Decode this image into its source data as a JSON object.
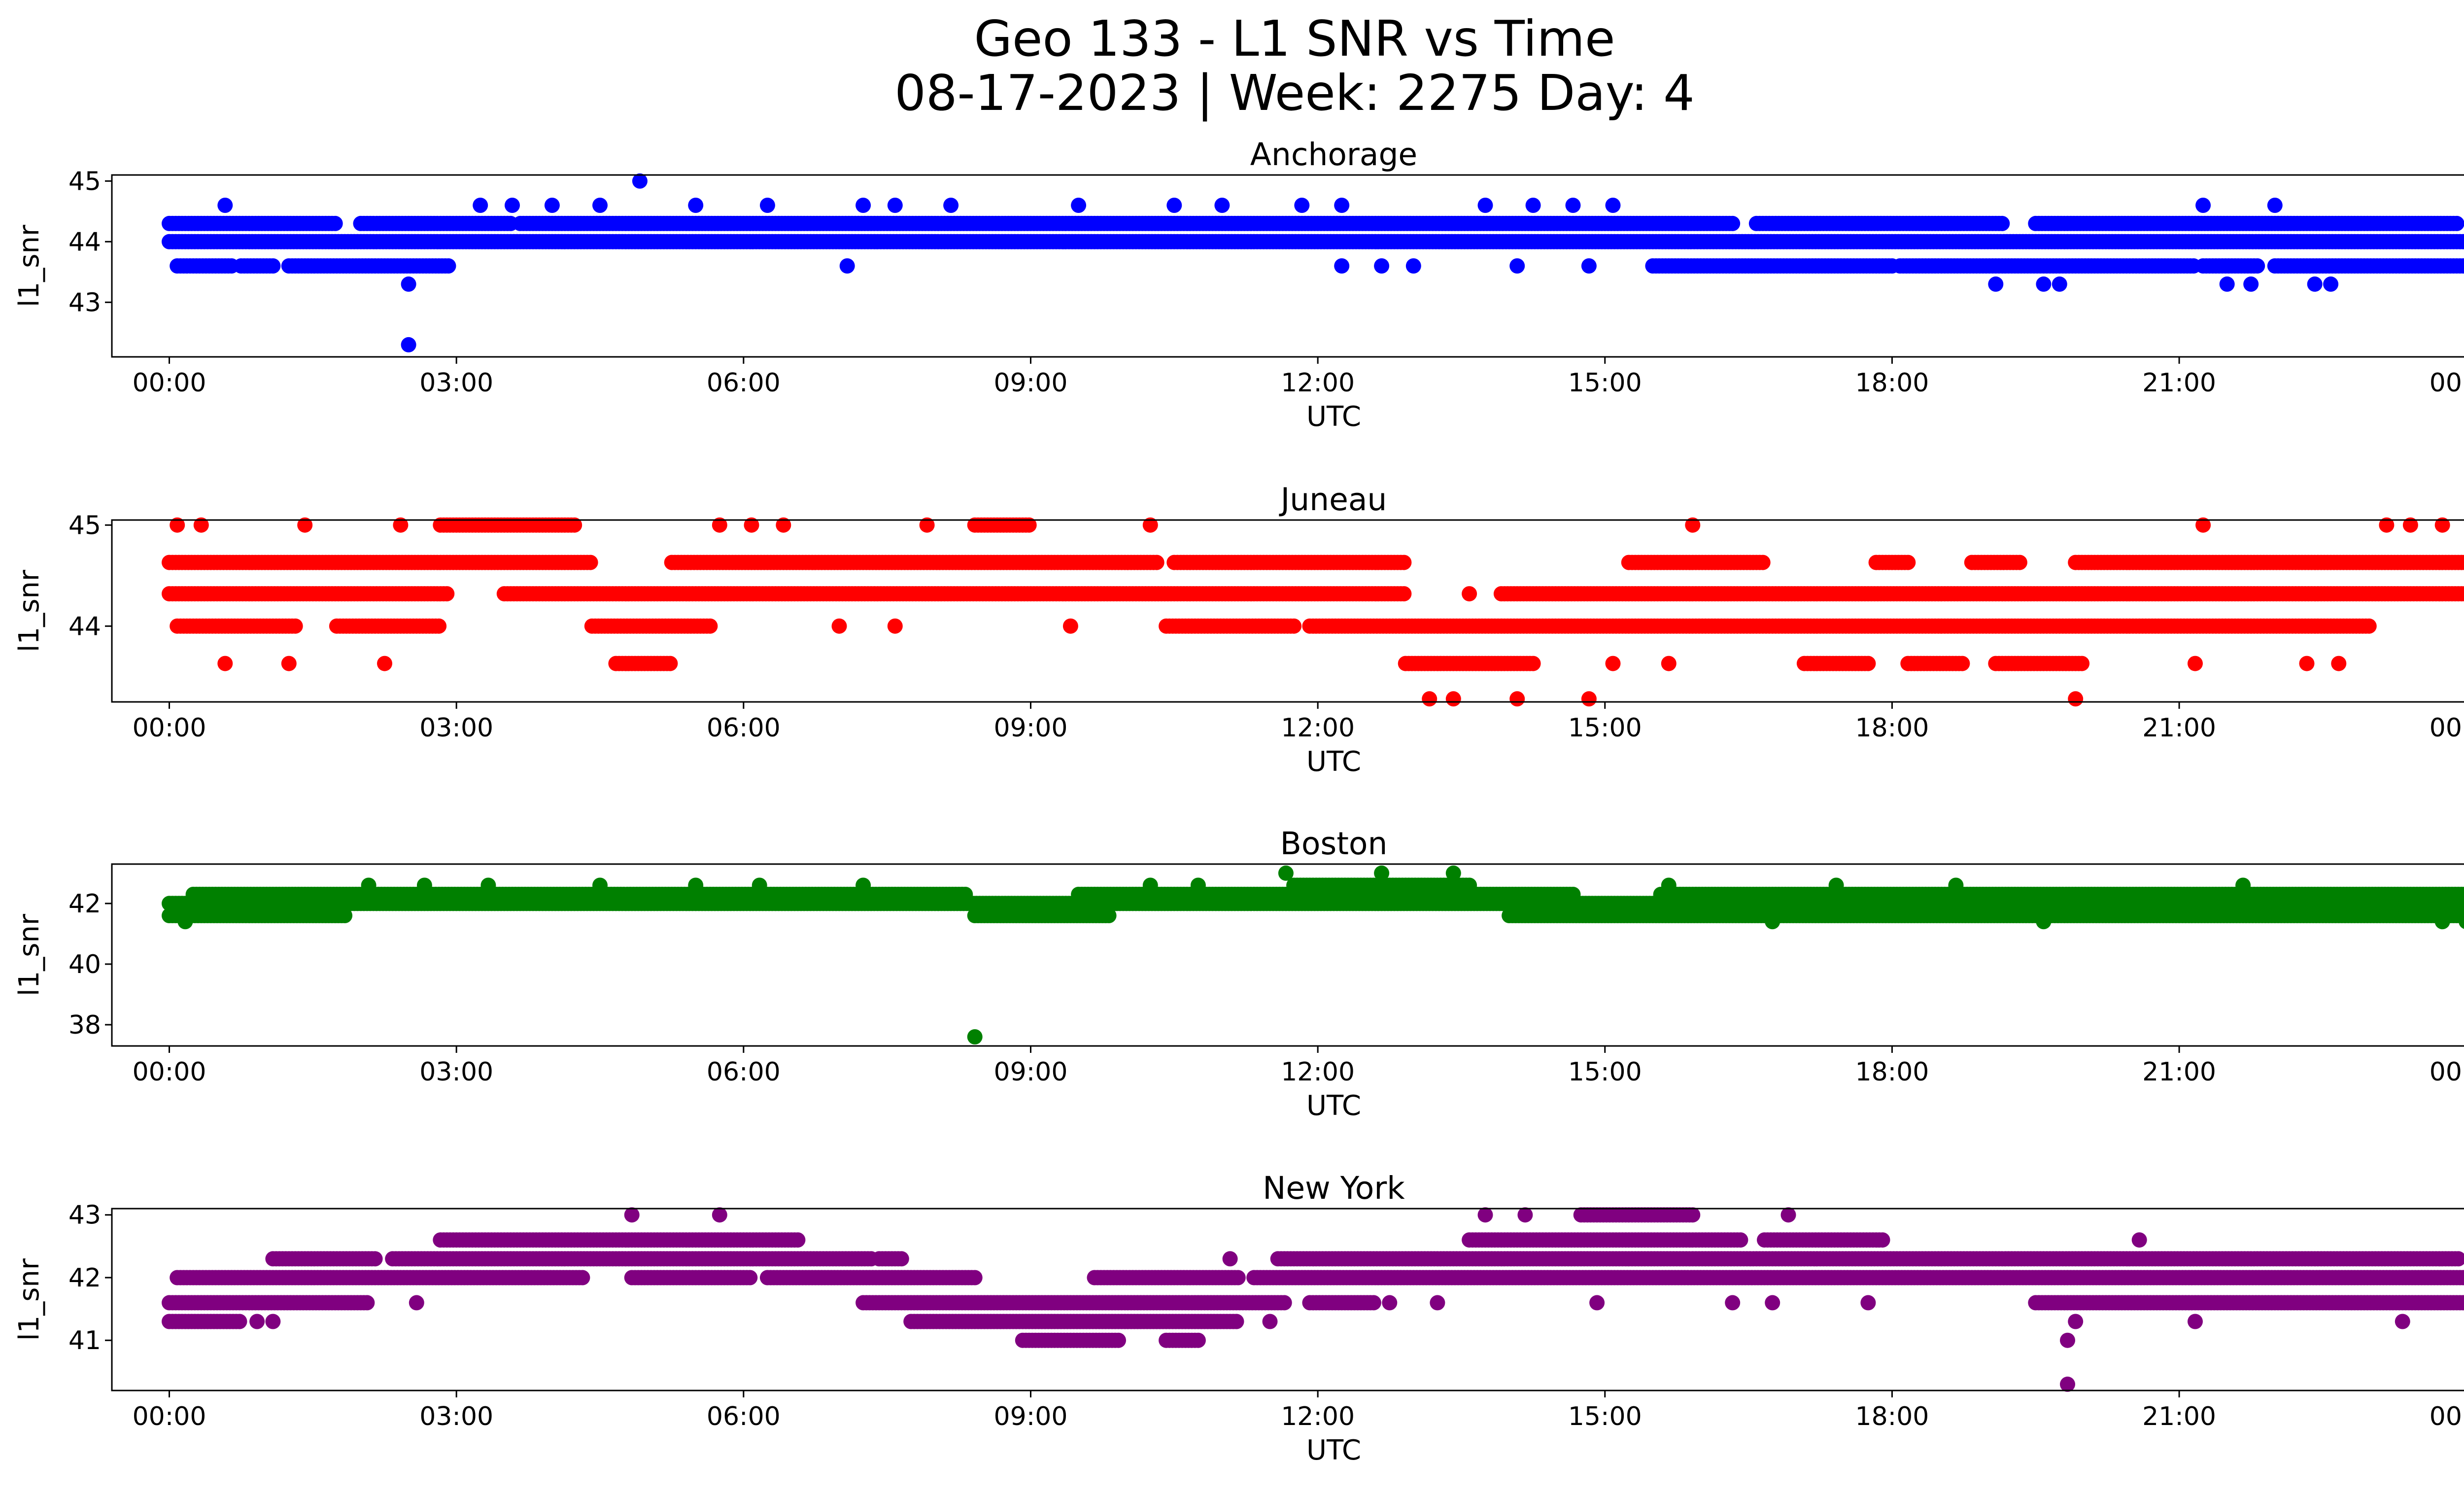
{
  "title_line1": "Geo 133 - L1 SNR vs Time",
  "title_line2": "08-17-2023 | Week: 2275 Day: 4",
  "chart_data": [
    {
      "type": "scatter",
      "title": "Anchorage",
      "xlabel": "UTC",
      "ylabel": "l1_snr",
      "color": "#0000ff",
      "xlim": [
        "23:24",
        "00:56"
      ],
      "x_ticks": [
        "00:00",
        "03:00",
        "06:00",
        "09:00",
        "12:00",
        "15:00",
        "18:00",
        "21:00",
        "00:00"
      ],
      "ylim": [
        42.1,
        45.1
      ],
      "y_ticks": [
        43,
        44,
        45
      ],
      "bands": [
        {
          "y": 44.3,
          "segments": [
            [
              "00:00",
              "01:45"
            ],
            [
              "02:00",
              "03:35"
            ],
            [
              "03:40",
              "16:20"
            ],
            [
              "16:35",
              "19:10"
            ],
            [
              "19:30",
              "23:55"
            ]
          ]
        },
        {
          "y": 44.0,
          "segments": [
            [
              "00:00",
              "24:00"
            ]
          ]
        },
        {
          "y": 43.6,
          "segments": [
            [
              "00:05",
              "00:40"
            ],
            [
              "00:45",
              "01:05"
            ],
            [
              "01:15",
              "02:55"
            ],
            [
              "15:30",
              "18:00"
            ],
            [
              "18:05",
              "21:10"
            ],
            [
              "21:15",
              "21:50"
            ],
            [
              "22:00",
              "24:00"
            ]
          ]
        }
      ],
      "points": [
        {
          "x": "00:35",
          "y": 44.6
        },
        {
          "x": "02:30",
          "y": 43.3
        },
        {
          "x": "02:30",
          "y": 42.3
        },
        {
          "x": "03:15",
          "y": 44.6
        },
        {
          "x": "03:35",
          "y": 44.6
        },
        {
          "x": "04:00",
          "y": 44.6
        },
        {
          "x": "04:30",
          "y": 44.6
        },
        {
          "x": "04:55",
          "y": 45.0
        },
        {
          "x": "05:30",
          "y": 44.6
        },
        {
          "x": "06:15",
          "y": 44.6
        },
        {
          "x": "07:05",
          "y": 43.6
        },
        {
          "x": "07:15",
          "y": 44.6
        },
        {
          "x": "07:35",
          "y": 44.6
        },
        {
          "x": "08:10",
          "y": 44.6
        },
        {
          "x": "09:30",
          "y": 44.6
        },
        {
          "x": "10:30",
          "y": 44.6
        },
        {
          "x": "11:00",
          "y": 44.6
        },
        {
          "x": "11:50",
          "y": 44.6
        },
        {
          "x": "12:15",
          "y": 44.6
        },
        {
          "x": "12:15",
          "y": 43.6
        },
        {
          "x": "12:40",
          "y": 43.6
        },
        {
          "x": "13:00",
          "y": 43.6
        },
        {
          "x": "13:45",
          "y": 44.6
        },
        {
          "x": "14:05",
          "y": 43.6
        },
        {
          "x": "14:15",
          "y": 44.6
        },
        {
          "x": "14:40",
          "y": 44.6
        },
        {
          "x": "14:50",
          "y": 43.6
        },
        {
          "x": "15:05",
          "y": 44.6
        },
        {
          "x": "19:05",
          "y": 43.3
        },
        {
          "x": "19:35",
          "y": 43.3
        },
        {
          "x": "19:45",
          "y": 43.3
        },
        {
          "x": "21:15",
          "y": 44.6
        },
        {
          "x": "21:30",
          "y": 43.3
        },
        {
          "x": "21:45",
          "y": 43.3
        },
        {
          "x": "22:00",
          "y": 44.6
        },
        {
          "x": "22:25",
          "y": 43.3
        },
        {
          "x": "22:35",
          "y": 43.3
        }
      ]
    },
    {
      "type": "scatter",
      "title": "Juneau",
      "xlabel": "UTC",
      "ylabel": "l1_snr",
      "color": "#ff0000",
      "xlim": [
        "23:24",
        "00:56"
      ],
      "x_ticks": [
        "00:00",
        "03:00",
        "06:00",
        "09:00",
        "12:00",
        "15:00",
        "18:00",
        "21:00",
        "00:00"
      ],
      "ylim": [
        43.25,
        45.05
      ],
      "y_ticks": [
        44,
        45
      ],
      "bands": [
        {
          "y": 44.63,
          "segments": [
            [
              "00:00",
              "04:25"
            ],
            [
              "05:15",
              "10:20"
            ],
            [
              "10:30",
              "12:55"
            ],
            [
              "15:15",
              "16:40"
            ],
            [
              "17:50",
              "18:10"
            ],
            [
              "18:50",
              "19:20"
            ],
            [
              "19:55",
              "24:00"
            ]
          ]
        },
        {
          "y": 44.32,
          "segments": [
            [
              "00:00",
              "02:55"
            ],
            [
              "03:30",
              "12:55"
            ],
            [
              "13:55",
              "24:00"
            ]
          ]
        },
        {
          "y": 44.0,
          "segments": [
            [
              "00:05",
              "01:20"
            ],
            [
              "01:45",
              "02:50"
            ],
            [
              "04:25",
              "05:40"
            ],
            [
              "10:25",
              "11:45"
            ],
            [
              "11:55",
              "23:00"
            ]
          ]
        },
        {
          "y": 43.63,
          "segments": [
            [
              "04:40",
              "05:15"
            ],
            [
              "12:55",
              "14:15"
            ],
            [
              "17:05",
              "17:45"
            ],
            [
              "18:10",
              "18:45"
            ],
            [
              "19:05",
              "20:00"
            ]
          ]
        },
        {
          "y": 45.0,
          "segments": [
            [
              "02:50",
              "04:15"
            ],
            [
              "08:25",
              "09:00"
            ]
          ]
        }
      ],
      "points": [
        {
          "x": "00:05",
          "y": 45.0
        },
        {
          "x": "00:20",
          "y": 45.0
        },
        {
          "x": "00:35",
          "y": 43.63
        },
        {
          "x": "01:15",
          "y": 43.63
        },
        {
          "x": "01:25",
          "y": 45.0
        },
        {
          "x": "02:15",
          "y": 43.63
        },
        {
          "x": "02:25",
          "y": 45.0
        },
        {
          "x": "05:45",
          "y": 45.0
        },
        {
          "x": "06:05",
          "y": 45.0
        },
        {
          "x": "06:25",
          "y": 45.0
        },
        {
          "x": "07:00",
          "y": 44.0
        },
        {
          "x": "07:35",
          "y": 44.0
        },
        {
          "x": "07:55",
          "y": 45.0
        },
        {
          "x": "09:25",
          "y": 44.0
        },
        {
          "x": "10:15",
          "y": 45.0
        },
        {
          "x": "13:10",
          "y": 43.28
        },
        {
          "x": "13:25",
          "y": 43.28
        },
        {
          "x": "13:35",
          "y": 44.32
        },
        {
          "x": "14:05",
          "y": 43.28
        },
        {
          "x": "14:50",
          "y": 43.28
        },
        {
          "x": "15:05",
          "y": 43.63
        },
        {
          "x": "15:40",
          "y": 43.63
        },
        {
          "x": "15:55",
          "y": 45.0
        },
        {
          "x": "19:55",
          "y": 43.28
        },
        {
          "x": "21:15",
          "y": 45.0
        },
        {
          "x": "21:10",
          "y": 43.63
        },
        {
          "x": "22:20",
          "y": 43.63
        },
        {
          "x": "22:40",
          "y": 43.63
        },
        {
          "x": "23:10",
          "y": 45.0
        },
        {
          "x": "23:25",
          "y": 45.0
        },
        {
          "x": "23:45",
          "y": 45.0
        }
      ]
    },
    {
      "type": "scatter",
      "title": "Boston",
      "xlabel": "UTC",
      "ylabel": "l1_snr",
      "color": "#008000",
      "xlim": [
        "23:24",
        "00:56"
      ],
      "x_ticks": [
        "00:00",
        "03:00",
        "06:00",
        "09:00",
        "12:00",
        "15:00",
        "18:00",
        "21:00",
        "00:00"
      ],
      "ylim": [
        37.3,
        43.3
      ],
      "y_ticks": [
        38,
        40,
        42
      ],
      "bands": [
        {
          "y": 42.3,
          "segments": [
            [
              "00:15",
              "08:20"
            ],
            [
              "09:30",
              "12:05"
            ],
            [
              "12:10",
              "14:40"
            ],
            [
              "15:35",
              "24:00"
            ]
          ]
        },
        {
          "y": 42.0,
          "segments": [
            [
              "00:00",
              "24:00"
            ]
          ]
        },
        {
          "y": 41.6,
          "segments": [
            [
              "00:00",
              "01:50"
            ],
            [
              "08:25",
              "09:50"
            ],
            [
              "14:00",
              "24:00"
            ]
          ]
        },
        {
          "y": 42.6,
          "segments": [
            [
              "11:45",
              "13:35"
            ]
          ]
        }
      ],
      "points": [
        {
          "x": "00:10",
          "y": 41.4
        },
        {
          "x": "02:05",
          "y": 42.6
        },
        {
          "x": "02:40",
          "y": 42.6
        },
        {
          "x": "03:20",
          "y": 42.6
        },
        {
          "x": "04:30",
          "y": 42.6
        },
        {
          "x": "05:30",
          "y": 42.6
        },
        {
          "x": "06:10",
          "y": 42.6
        },
        {
          "x": "07:15",
          "y": 42.6
        },
        {
          "x": "08:25",
          "y": 37.6
        },
        {
          "x": "10:15",
          "y": 42.6
        },
        {
          "x": "10:45",
          "y": 42.6
        },
        {
          "x": "11:40",
          "y": 43.0
        },
        {
          "x": "12:40",
          "y": 43.0
        },
        {
          "x": "13:25",
          "y": 43.0
        },
        {
          "x": "15:40",
          "y": 42.6
        },
        {
          "x": "16:45",
          "y": 41.4
        },
        {
          "x": "17:25",
          "y": 42.6
        },
        {
          "x": "18:40",
          "y": 42.6
        },
        {
          "x": "19:35",
          "y": 41.4
        },
        {
          "x": "21:40",
          "y": 42.6
        },
        {
          "x": "23:45",
          "y": 41.4
        },
        {
          "x": "24:00",
          "y": 41.4
        }
      ]
    },
    {
      "type": "scatter",
      "title": "New York",
      "xlabel": "UTC",
      "ylabel": "l1_snr",
      "color": "#800080",
      "xlim": [
        "23:24",
        "00:56"
      ],
      "x_ticks": [
        "00:00",
        "03:00",
        "06:00",
        "09:00",
        "12:00",
        "15:00",
        "18:00",
        "21:00",
        "00:00"
      ],
      "ylim": [
        40.2,
        43.1
      ],
      "y_ticks": [
        41,
        42,
        43
      ],
      "bands": [
        {
          "y": 42.6,
          "segments": [
            [
              "02:50",
              "06:35"
            ],
            [
              "13:35",
              "16:25"
            ],
            [
              "16:40",
              "17:55"
            ]
          ]
        },
        {
          "y": 42.3,
          "segments": [
            [
              "01:05",
              "02:10"
            ],
            [
              "02:20",
              "07:20"
            ],
            [
              "07:25",
              "07:40"
            ],
            [
              "11:35",
              "23:55"
            ]
          ]
        },
        {
          "y": 42.0,
          "segments": [
            [
              "00:05",
              "04:20"
            ],
            [
              "04:50",
              "06:05"
            ],
            [
              "06:15",
              "08:25"
            ],
            [
              "09:40",
              "11:10"
            ],
            [
              "11:20",
              "24:00"
            ]
          ]
        },
        {
          "y": 41.6,
          "segments": [
            [
              "00:00",
              "02:05"
            ],
            [
              "07:15",
              "11:40"
            ],
            [
              "11:55",
              "12:35"
            ],
            [
              "19:30",
              "24:00"
            ]
          ]
        },
        {
          "y": 41.3,
          "segments": [
            [
              "00:00",
              "00:45"
            ],
            [
              "07:45",
              "11:10"
            ]
          ]
        },
        {
          "y": 41.0,
          "segments": [
            [
              "08:55",
              "09:55"
            ],
            [
              "10:25",
              "10:45"
            ]
          ]
        },
        {
          "y": 43.0,
          "segments": [
            [
              "14:45",
              "15:55"
            ]
          ]
        }
      ],
      "points": [
        {
          "x": "00:55",
          "y": 41.3
        },
        {
          "x": "01:05",
          "y": 41.3
        },
        {
          "x": "02:35",
          "y": 41.6
        },
        {
          "x": "04:50",
          "y": 43.0
        },
        {
          "x": "05:45",
          "y": 43.0
        },
        {
          "x": "11:05",
          "y": 42.3
        },
        {
          "x": "11:30",
          "y": 41.3
        },
        {
          "x": "12:45",
          "y": 41.6
        },
        {
          "x": "13:15",
          "y": 41.6
        },
        {
          "x": "13:45",
          "y": 43.0
        },
        {
          "x": "14:10",
          "y": 43.0
        },
        {
          "x": "14:55",
          "y": 41.6
        },
        {
          "x": "16:20",
          "y": 41.6
        },
        {
          "x": "16:55",
          "y": 43.0
        },
        {
          "x": "16:45",
          "y": 41.6
        },
        {
          "x": "17:45",
          "y": 41.6
        },
        {
          "x": "19:50",
          "y": 41.0
        },
        {
          "x": "19:50",
          "y": 40.3
        },
        {
          "x": "19:55",
          "y": 41.3
        },
        {
          "x": "20:35",
          "y": 42.6
        },
        {
          "x": "21:10",
          "y": 41.3
        },
        {
          "x": "23:20",
          "y": 41.3
        }
      ]
    }
  ]
}
